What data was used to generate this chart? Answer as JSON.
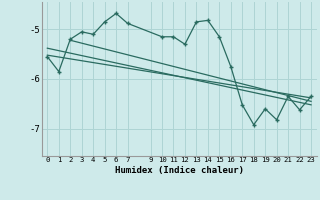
{
  "xlabel": "Humidex (Indice chaleur)",
  "bg_color": "#ceeaea",
  "grid_color": "#aed4d4",
  "line_color": "#2a6b60",
  "xlim": [
    -0.5,
    23.5
  ],
  "ylim": [
    -7.55,
    -4.45
  ],
  "xticks": [
    0,
    1,
    2,
    3,
    4,
    5,
    6,
    7,
    9,
    10,
    11,
    12,
    13,
    14,
    15,
    16,
    17,
    18,
    19,
    20,
    21,
    22,
    23
  ],
  "yticks": [
    -7,
    -6,
    -5
  ],
  "main_x": [
    0,
    1,
    2,
    3,
    4,
    5,
    6,
    7,
    10,
    11,
    12,
    13,
    14,
    15,
    16,
    17,
    18,
    19,
    20,
    21,
    22,
    23
  ],
  "main_y": [
    -5.55,
    -5.85,
    -5.2,
    -5.05,
    -5.1,
    -4.85,
    -4.68,
    -4.88,
    -5.15,
    -5.15,
    -5.3,
    -4.85,
    -4.82,
    -5.15,
    -5.75,
    -6.52,
    -6.92,
    -6.6,
    -6.82,
    -6.35,
    -6.62,
    -6.35
  ],
  "trend1_x": [
    0,
    23
  ],
  "trend1_y": [
    -5.38,
    -6.52
  ],
  "trend2_x": [
    0,
    23
  ],
  "trend2_y": [
    -5.52,
    -6.38
  ],
  "trend3_x": [
    2,
    23
  ],
  "trend3_y": [
    -5.22,
    -6.45
  ]
}
